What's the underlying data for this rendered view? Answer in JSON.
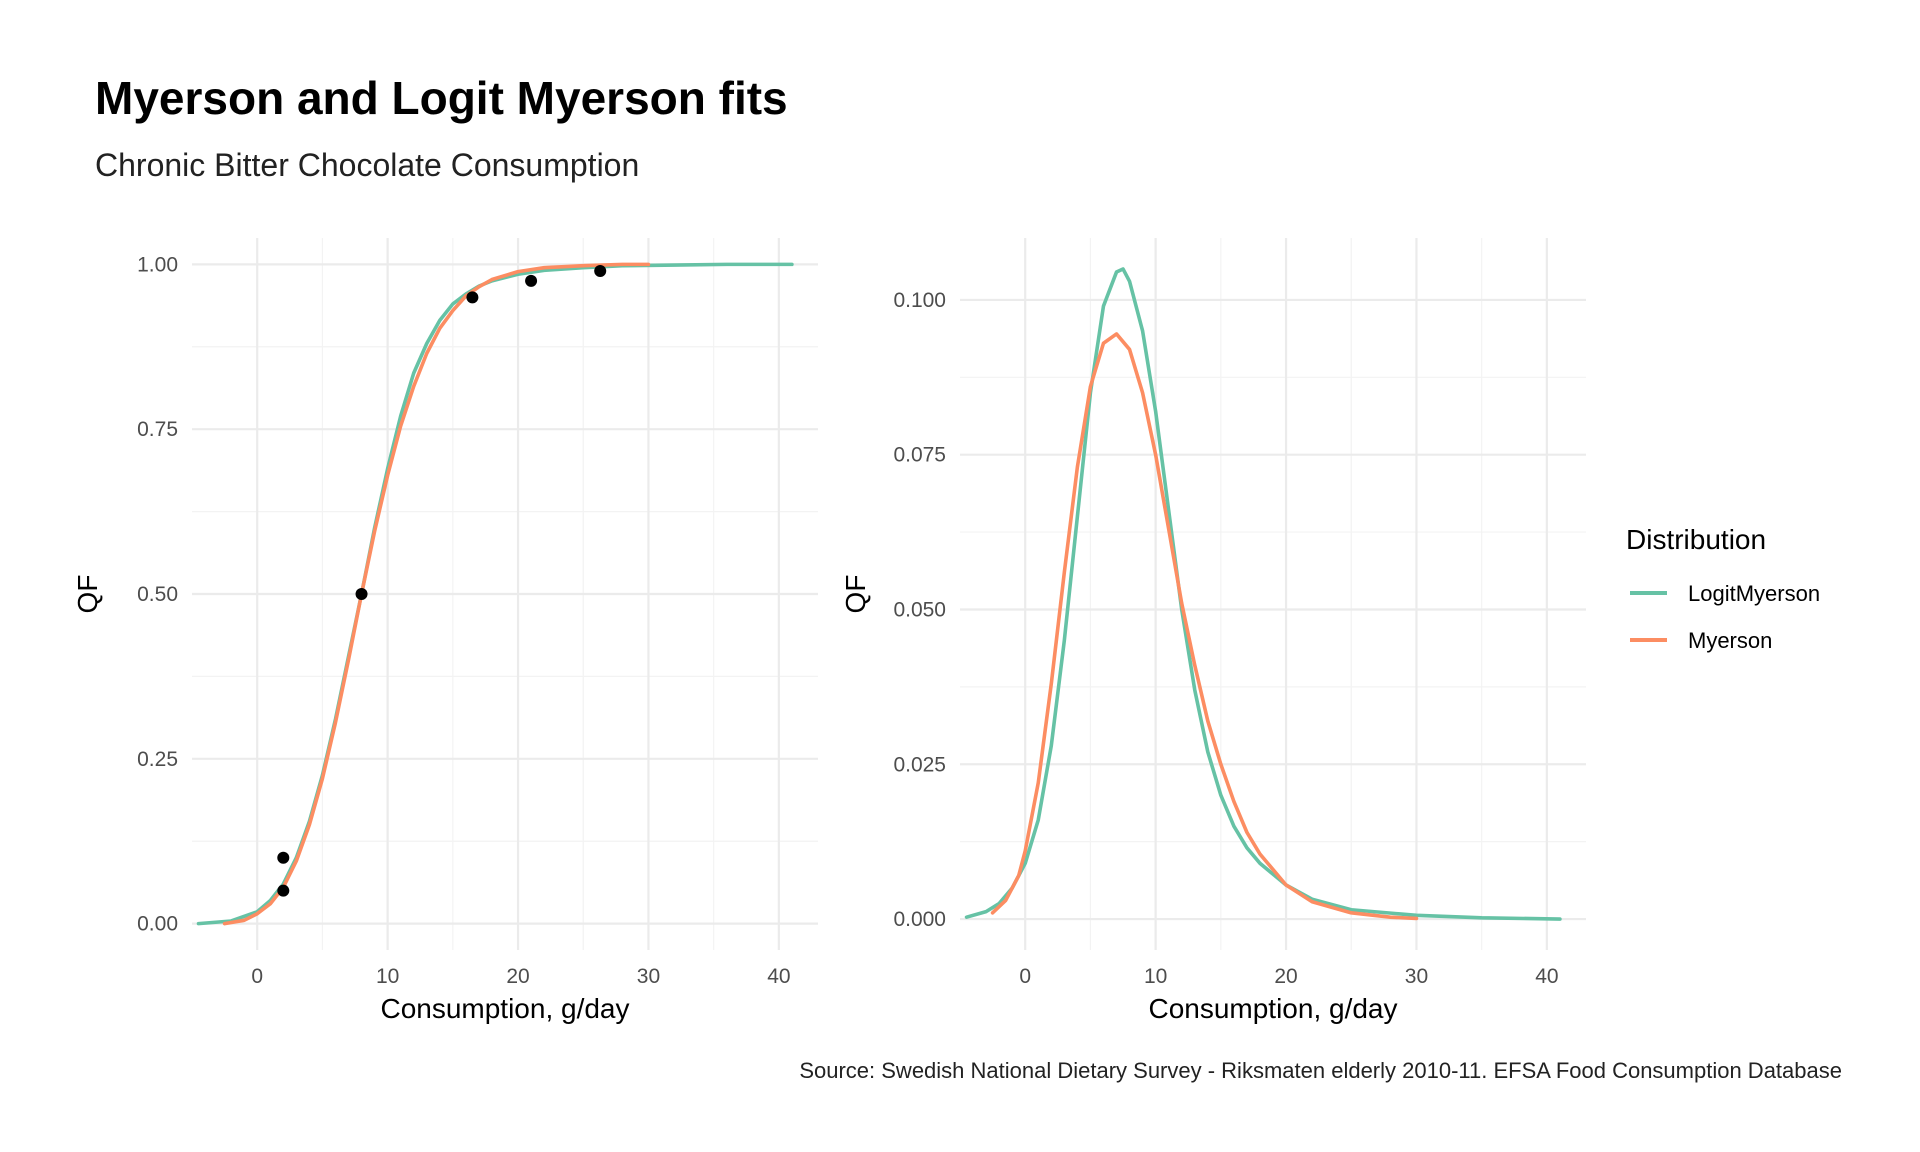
{
  "title": "Myerson and Logit Myerson fits",
  "subtitle": "Chronic Bitter Chocolate Consumption",
  "caption": "Source: Swedish National Dietary Survey - Riksmaten elderly 2010-11. EFSA Food Consumption Database",
  "legend": {
    "title": "Distribution",
    "items": [
      {
        "label": "LogitMyerson",
        "color": "#66c2a5"
      },
      {
        "label": "Myerson",
        "color": "#fc8d62"
      }
    ]
  },
  "chart_data": [
    {
      "type": "line",
      "panel": "left",
      "xlabel": "Consumption, g/day",
      "ylabel": "QF",
      "xlim": [
        -5,
        43
      ],
      "ylim": [
        -0.04,
        1.04
      ],
      "x_ticks": [
        0,
        10,
        20,
        30,
        40
      ],
      "y_ticks": [
        0.0,
        0.25,
        0.5,
        0.75,
        1.0
      ],
      "y_tick_labels": [
        "0.00",
        "0.25",
        "0.50",
        "0.75",
        "1.00"
      ],
      "grid": true,
      "series": [
        {
          "name": "LogitMyerson",
          "color": "#66c2a5",
          "x": [
            -4.5,
            -2,
            0,
            1,
            2,
            3,
            4,
            5,
            6,
            7,
            8,
            9,
            10,
            11,
            12,
            13,
            14,
            15,
            16,
            17,
            18,
            20,
            22,
            25,
            28,
            32,
            36,
            41
          ],
          "y": [
            0.0,
            0.004,
            0.018,
            0.035,
            0.06,
            0.1,
            0.155,
            0.225,
            0.31,
            0.405,
            0.5,
            0.6,
            0.69,
            0.77,
            0.835,
            0.88,
            0.915,
            0.94,
            0.955,
            0.967,
            0.975,
            0.985,
            0.991,
            0.995,
            0.998,
            0.999,
            1.0,
            1.0
          ]
        },
        {
          "name": "Myerson",
          "color": "#fc8d62",
          "x": [
            -2.5,
            -1,
            0,
            1,
            2,
            3,
            4,
            5,
            6,
            7,
            8,
            9,
            10,
            11,
            12,
            13,
            14,
            15,
            16,
            17,
            18,
            20,
            22,
            25,
            28,
            30
          ],
          "y": [
            0.0,
            0.005,
            0.015,
            0.03,
            0.055,
            0.095,
            0.15,
            0.22,
            0.305,
            0.4,
            0.5,
            0.595,
            0.68,
            0.755,
            0.815,
            0.865,
            0.903,
            0.93,
            0.952,
            0.966,
            0.977,
            0.989,
            0.995,
            0.998,
            1.0,
            1.0
          ]
        }
      ],
      "points": {
        "x": [
          2,
          2,
          8,
          16.5,
          21,
          26.3
        ],
        "y": [
          0.05,
          0.1,
          0.5,
          0.95,
          0.975,
          0.99
        ]
      }
    },
    {
      "type": "line",
      "panel": "right",
      "xlabel": "Consumption, g/day",
      "ylabel": "QF",
      "xlim": [
        -5,
        43
      ],
      "ylim": [
        -0.005,
        0.11
      ],
      "x_ticks": [
        0,
        10,
        20,
        30,
        40
      ],
      "y_ticks": [
        0.0,
        0.025,
        0.05,
        0.075,
        0.1
      ],
      "y_tick_labels": [
        "0.000",
        "0.025",
        "0.050",
        "0.075",
        "0.100"
      ],
      "grid": true,
      "series": [
        {
          "name": "LogitMyerson",
          "color": "#66c2a5",
          "x": [
            -4.5,
            -3,
            -2,
            -1,
            0,
            1,
            2,
            3,
            4,
            5,
            6,
            7,
            7.5,
            8,
            9,
            10,
            11,
            12,
            13,
            14,
            15,
            16,
            17,
            18,
            20,
            22,
            25,
            30,
            35,
            41
          ],
          "y": [
            0.0003,
            0.0012,
            0.0025,
            0.005,
            0.009,
            0.016,
            0.028,
            0.045,
            0.065,
            0.085,
            0.099,
            0.1045,
            0.105,
            0.103,
            0.095,
            0.082,
            0.066,
            0.05,
            0.037,
            0.027,
            0.02,
            0.015,
            0.0115,
            0.009,
            0.0055,
            0.0032,
            0.0015,
            0.0006,
            0.0002,
            0.0
          ]
        },
        {
          "name": "Myerson",
          "color": "#fc8d62",
          "x": [
            -2.5,
            -1.5,
            -0.5,
            0,
            1,
            2,
            3,
            4,
            5,
            6,
            7,
            8,
            9,
            10,
            11,
            12,
            13,
            14,
            15,
            16,
            17,
            18,
            20,
            22,
            25,
            28,
            30
          ],
          "y": [
            0.001,
            0.003,
            0.007,
            0.011,
            0.022,
            0.038,
            0.056,
            0.073,
            0.086,
            0.093,
            0.0945,
            0.092,
            0.085,
            0.075,
            0.063,
            0.051,
            0.041,
            0.032,
            0.025,
            0.019,
            0.014,
            0.0105,
            0.0055,
            0.0028,
            0.001,
            0.0003,
            0.0001
          ]
        }
      ]
    }
  ]
}
